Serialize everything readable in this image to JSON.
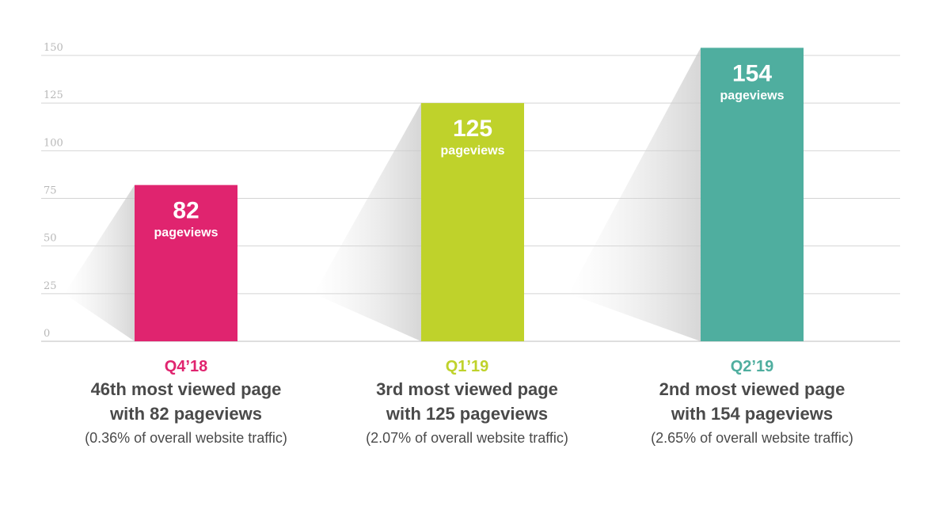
{
  "chart_data": {
    "type": "bar",
    "categories": [
      "Q4'18",
      "Q1'19",
      "Q2'19"
    ],
    "values": [
      82,
      125,
      154
    ],
    "value_unit_label": "pageviews",
    "ylim": [
      0,
      150
    ],
    "yticks": [
      0,
      25,
      50,
      75,
      100,
      125,
      150
    ],
    "grid": true,
    "colors": [
      "#e0246f",
      "#bfd22b",
      "#4fae9f"
    ],
    "title": "",
    "xlabel": "",
    "ylabel": ""
  },
  "captions": [
    {
      "period": "Q4’18",
      "rank": "46th most viewed page",
      "detail": "with 82 pageviews",
      "traffic": "(0.36% of overall website traffic)",
      "color": "#e0246f"
    },
    {
      "period": "Q1’19",
      "rank": "3rd most viewed page",
      "detail": "with 125 pageviews",
      "traffic": "(2.07% of overall website traffic)",
      "color": "#bfd22b"
    },
    {
      "period": "Q2’19",
      "rank": "2nd most viewed page",
      "detail": "with 154 pageviews",
      "traffic": "(2.65% of overall website traffic)",
      "color": "#4fae9f"
    }
  ]
}
